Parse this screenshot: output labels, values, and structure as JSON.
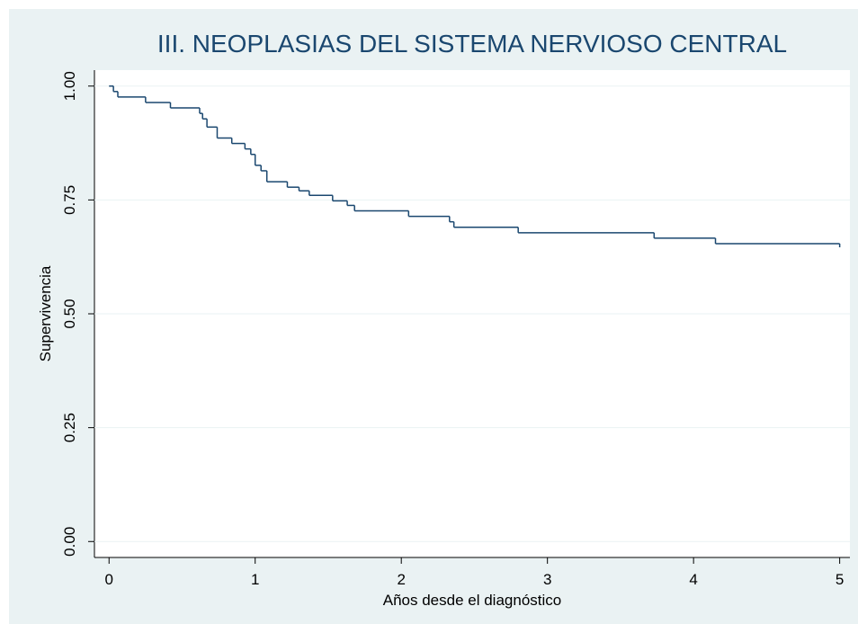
{
  "chart_data": {
    "type": "step",
    "title": "III. NEOPLASIAS DEL SISTEMA NERVIOSO CENTRAL",
    "x_label": "Años desde el diagnóstico",
    "y_label": "Supervivencia",
    "x": [
      0,
      0.03,
      0.06,
      0.25,
      0.42,
      0.62,
      0.64,
      0.67,
      0.74,
      0.84,
      0.93,
      0.97,
      1.0,
      1.04,
      1.08,
      1.22,
      1.3,
      1.37,
      1.53,
      1.63,
      1.68,
      2.05,
      2.33,
      2.36,
      2.8,
      3.73,
      4.15,
      5.0
    ],
    "series": [
      {
        "color": "#1a476f",
        "values": [
          1.0,
          0.988,
          0.976,
          0.964,
          0.952,
          0.94,
          0.928,
          0.91,
          0.886,
          0.874,
          0.862,
          0.85,
          0.826,
          0.814,
          0.79,
          0.778,
          0.77,
          0.76,
          0.748,
          0.738,
          0.726,
          0.714,
          0.702,
          0.69,
          0.678,
          0.666,
          0.654,
          0.646
        ]
      }
    ],
    "xlim": [
      -0.1,
      5.07
    ],
    "ylim": [
      -0.035,
      1.035
    ],
    "xticks": [
      0,
      1,
      2,
      3,
      4,
      5
    ],
    "yticks": [
      {
        "value": 0,
        "label": "0.00"
      },
      {
        "value": 0.25,
        "label": "0.25"
      },
      {
        "value": 0.5,
        "label": "0.50"
      },
      {
        "value": 0.75,
        "label": "0.75"
      },
      {
        "value": 1,
        "label": "1.00"
      }
    ],
    "grid": true
  }
}
